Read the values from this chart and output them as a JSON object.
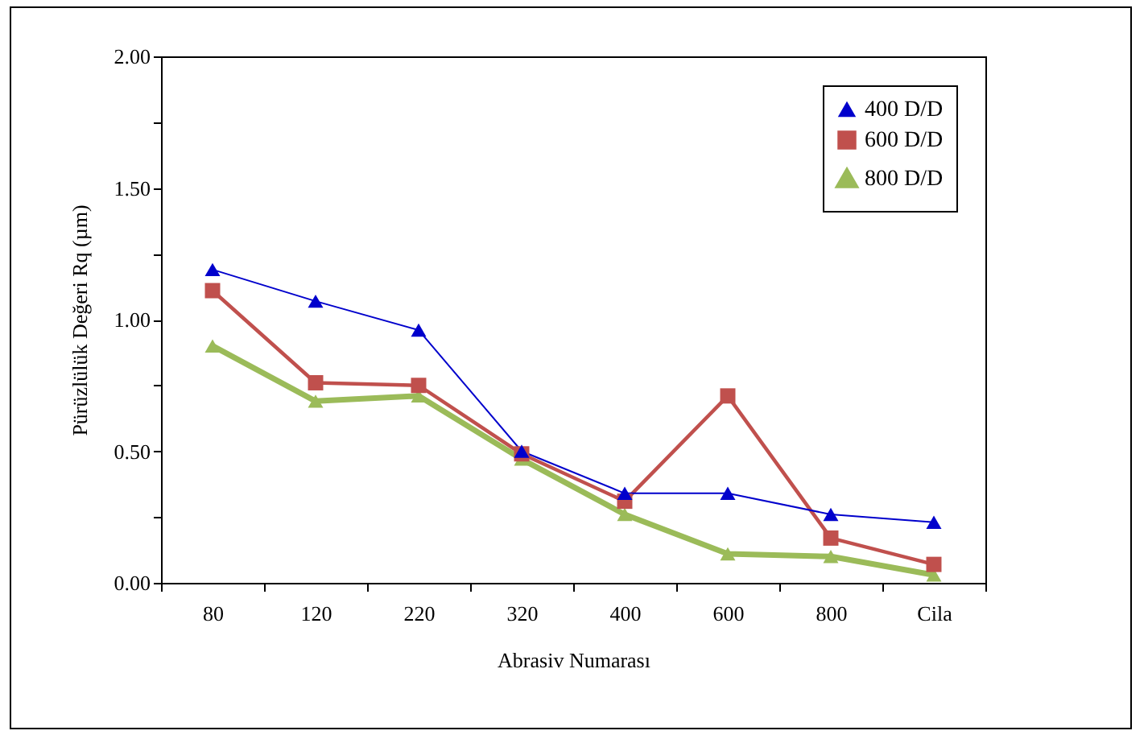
{
  "chart_data": {
    "type": "line",
    "xlabel": "Abrasiv Numarası",
    "ylabel": "Pürüzlülük  Değeri Rq (µm)",
    "categories": [
      "80",
      "120",
      "220",
      "320",
      "400",
      "600",
      "800",
      "Cila"
    ],
    "series": [
      {
        "name": "400 D/D",
        "color": "#0000cc",
        "marker": "triangle",
        "values": [
          1.19,
          1.07,
          0.96,
          0.5,
          0.34,
          0.34,
          0.26,
          0.23
        ]
      },
      {
        "name": "600 D/D",
        "color": "#c0504d",
        "marker": "square",
        "values": [
          1.11,
          0.76,
          0.75,
          0.49,
          0.31,
          0.71,
          0.17,
          0.07
        ]
      },
      {
        "name": "800 D/D",
        "color": "#9bbb59",
        "marker": "triangle",
        "values": [
          0.9,
          0.69,
          0.71,
          0.47,
          0.26,
          0.11,
          0.1,
          0.03
        ]
      }
    ],
    "ylim": [
      0,
      2
    ],
    "yticks": [
      {
        "value": 0,
        "label": "0.00"
      },
      {
        "value": 0.25,
        "label": null
      },
      {
        "value": 0.5,
        "label": "0.50"
      },
      {
        "value": 0.75,
        "label": null
      },
      {
        "value": 1,
        "label": "1.00"
      },
      {
        "value": 1.25,
        "label": null
      },
      {
        "value": 1.5,
        "label": "1.50"
      },
      {
        "value": 1.75,
        "label": null
      },
      {
        "value": 2,
        "label": "2.00"
      }
    ],
    "grid": false,
    "legend": "top right",
    "line_style": "solid"
  }
}
